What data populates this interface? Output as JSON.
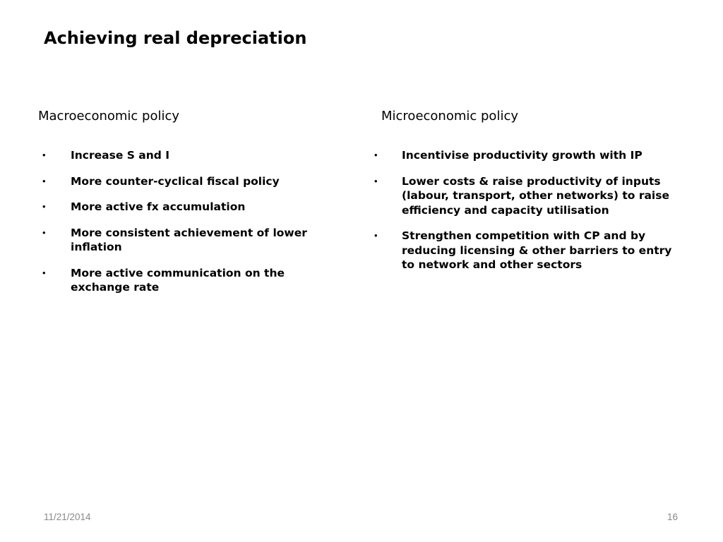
{
  "slide": {
    "title": "Achieving real depreciation",
    "left_column": {
      "heading": "Macroeconomic policy",
      "items": [
        "Increase S and I",
        "More counter-cyclical fiscal policy",
        "More active fx accumulation",
        "More consistent achievement of lower inflation",
        "More active communication on the exchange rate"
      ]
    },
    "right_column": {
      "heading": "Microeconomic policy",
      "items": [
        "Incentivise productivity growth with IP",
        "Lower costs & raise productivity of inputs (labour, transport, other networks) to raise efficiency and capacity utilisation",
        "Strengthen competition with CP and by reducing licensing & other barriers to entry to network and other sectors"
      ]
    },
    "bullet_glyph": "•",
    "footer": {
      "date": "11/21/2014",
      "page_number": "16"
    }
  }
}
